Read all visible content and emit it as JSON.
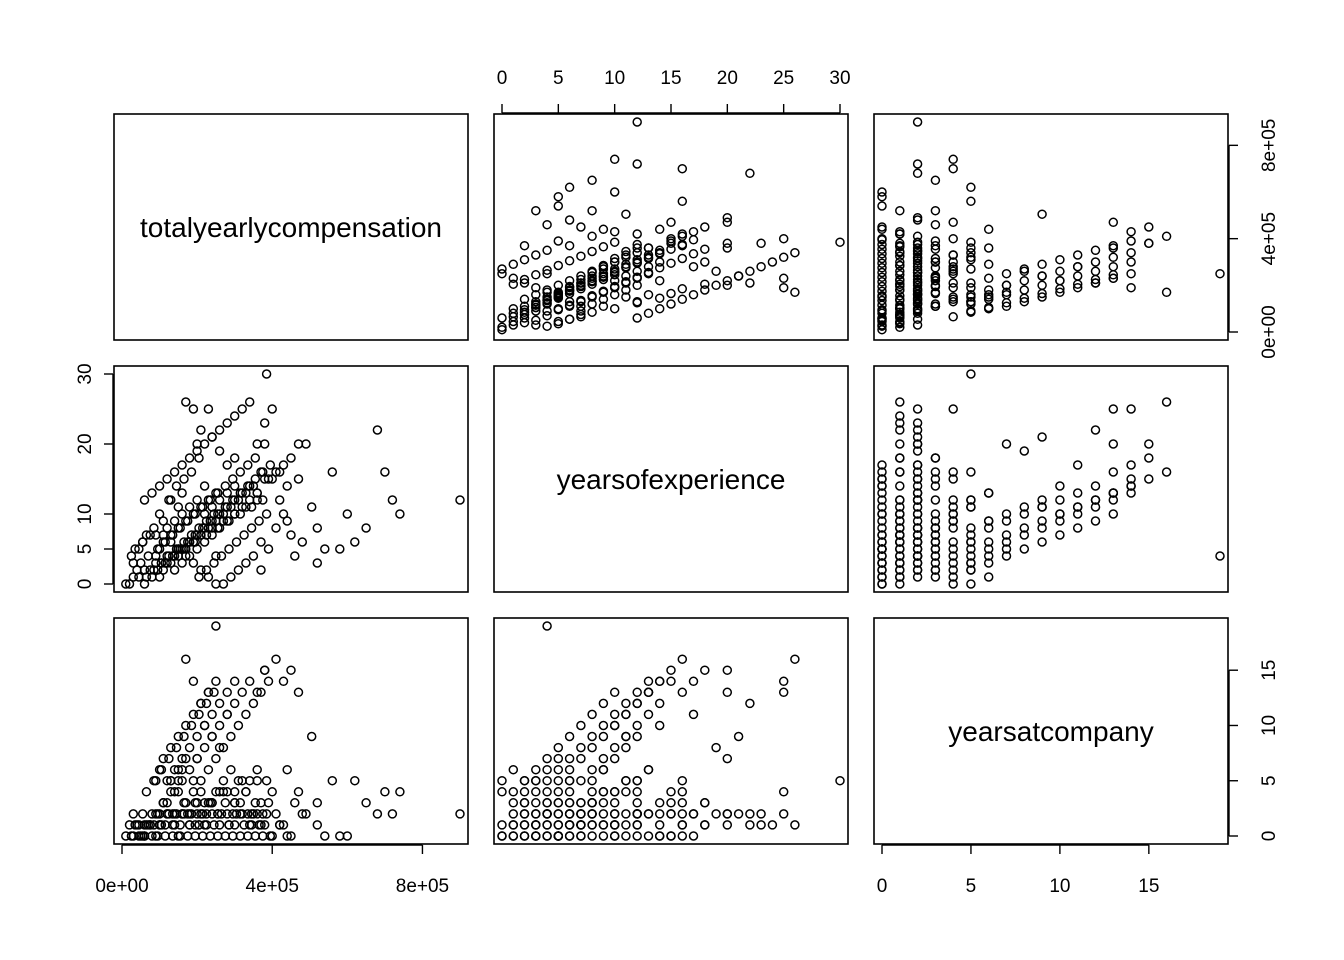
{
  "chart_data": {
    "type": "scatter",
    "subtype": "pairs-matrix",
    "variables": [
      "totalyearlycompensation",
      "yearsofexperience",
      "yearsatcompany"
    ],
    "ranges": {
      "totalyearlycompensation": [
        0,
        900000
      ],
      "yearsofexperience": [
        0,
        30
      ],
      "yearsatcompany": [
        0,
        19
      ]
    },
    "axes": {
      "bottom": [
        {
          "column": 0,
          "variable": "totalyearlycompensation",
          "ticks": [
            0,
            400000,
            800000
          ],
          "labels": [
            "0e+00",
            "4e+05",
            "8e+05"
          ]
        },
        {
          "column": 2,
          "variable": "yearsatcompany",
          "ticks": [
            0,
            5,
            10,
            15
          ],
          "labels": [
            "0",
            "5",
            "10",
            "15"
          ]
        }
      ],
      "top": [
        {
          "column": 1,
          "variable": "yearsofexperience",
          "ticks": [
            0,
            5,
            10,
            15,
            20,
            25,
            30
          ],
          "labels": [
            "0",
            "5",
            "10",
            "15",
            "20",
            "25",
            "30"
          ]
        }
      ],
      "left": [
        {
          "row": 1,
          "variable": "yearsofexperience",
          "ticks": [
            0,
            5,
            10,
            20,
            30
          ],
          "labels": [
            "0",
            "5",
            "10",
            "20",
            "30"
          ]
        }
      ],
      "right": [
        {
          "row": 0,
          "variable": "totalyearlycompensation",
          "ticks": [
            0,
            400000,
            800000
          ],
          "labels": [
            "0e+00",
            "4e+05",
            "8e+05"
          ]
        },
        {
          "row": 2,
          "variable": "yearsatcompany",
          "ticks": [
            0,
            5,
            10,
            15
          ],
          "labels": [
            "0",
            "5",
            "10",
            "15"
          ]
        }
      ]
    },
    "observations": {
      "fields": [
        "totalyearlycompensation",
        "yearsofexperience",
        "yearsatcompany"
      ],
      "rows": [
        [
          10000,
          0,
          0
        ],
        [
          20000,
          0,
          1
        ],
        [
          30000,
          1,
          0
        ],
        [
          45000,
          1,
          1
        ],
        [
          60000,
          2,
          0
        ],
        [
          75000,
          2,
          1
        ],
        [
          90000,
          3,
          0
        ],
        [
          105000,
          3,
          1
        ],
        [
          120000,
          4,
          2
        ],
        [
          135000,
          4,
          1
        ],
        [
          150000,
          5,
          0
        ],
        [
          165000,
          5,
          2
        ],
        [
          180000,
          6,
          1
        ],
        [
          195000,
          6,
          3
        ],
        [
          210000,
          7,
          2
        ],
        [
          225000,
          7,
          1
        ],
        [
          240000,
          8,
          3
        ],
        [
          255000,
          8,
          2
        ],
        [
          270000,
          9,
          4
        ],
        [
          285000,
          9,
          1
        ],
        [
          300000,
          10,
          3
        ],
        [
          315000,
          10,
          2
        ],
        [
          330000,
          11,
          4
        ],
        [
          345000,
          11,
          1
        ],
        [
          360000,
          12,
          5
        ],
        [
          375000,
          12,
          2
        ],
        [
          120000,
          3,
          3
        ],
        [
          140000,
          4,
          4
        ],
        [
          160000,
          5,
          5
        ],
        [
          180000,
          6,
          6
        ],
        [
          200000,
          7,
          7
        ],
        [
          220000,
          8,
          8
        ],
        [
          240000,
          9,
          9
        ],
        [
          260000,
          10,
          10
        ],
        [
          280000,
          11,
          11
        ],
        [
          300000,
          12,
          12
        ],
        [
          320000,
          13,
          13
        ],
        [
          340000,
          14,
          14
        ],
        [
          360000,
          13,
          13
        ],
        [
          380000,
          15,
          15
        ],
        [
          100000,
          1,
          2
        ],
        [
          110000,
          2,
          3
        ],
        [
          130000,
          3,
          5
        ],
        [
          150000,
          4,
          6
        ],
        [
          170000,
          5,
          7
        ],
        [
          190000,
          6,
          4
        ],
        [
          210000,
          7,
          5
        ],
        [
          230000,
          8,
          6
        ],
        [
          250000,
          9,
          7
        ],
        [
          270000,
          10,
          8
        ],
        [
          290000,
          11,
          9
        ],
        [
          310000,
          12,
          10
        ],
        [
          330000,
          13,
          11
        ],
        [
          350000,
          14,
          12
        ],
        [
          370000,
          16,
          13
        ],
        [
          390000,
          15,
          14
        ],
        [
          410000,
          16,
          16
        ],
        [
          430000,
          17,
          14
        ],
        [
          450000,
          18,
          15
        ],
        [
          470000,
          20,
          13
        ],
        [
          60000,
          0,
          0
        ],
        [
          80000,
          1,
          0
        ],
        [
          95000,
          2,
          0
        ],
        [
          115000,
          3,
          0
        ],
        [
          135000,
          4,
          0
        ],
        [
          155000,
          5,
          0
        ],
        [
          175000,
          6,
          0
        ],
        [
          195000,
          7,
          0
        ],
        [
          215000,
          8,
          0
        ],
        [
          235000,
          9,
          0
        ],
        [
          255000,
          10,
          0
        ],
        [
          275000,
          11,
          0
        ],
        [
          295000,
          12,
          0
        ],
        [
          315000,
          13,
          0
        ],
        [
          335000,
          14,
          0
        ],
        [
          355000,
          15,
          0
        ],
        [
          375000,
          16,
          0
        ],
        [
          395000,
          17,
          0
        ],
        [
          140000,
          2,
          2
        ],
        [
          160000,
          3,
          2
        ],
        [
          180000,
          4,
          2
        ],
        [
          200000,
          5,
          3
        ],
        [
          220000,
          6,
          3
        ],
        [
          240000,
          7,
          3
        ],
        [
          260000,
          8,
          4
        ],
        [
          280000,
          9,
          4
        ],
        [
          300000,
          10,
          4
        ],
        [
          320000,
          11,
          5
        ],
        [
          340000,
          12,
          5
        ],
        [
          360000,
          13,
          6
        ],
        [
          45000,
          5,
          0
        ],
        [
          55000,
          6,
          0
        ],
        [
          65000,
          7,
          1
        ],
        [
          85000,
          8,
          1
        ],
        [
          100000,
          10,
          1
        ],
        [
          125000,
          12,
          2
        ],
        [
          145000,
          14,
          2
        ],
        [
          165000,
          15,
          3
        ],
        [
          185000,
          16,
          2
        ],
        [
          205000,
          18,
          1
        ],
        [
          900000,
          12,
          2
        ],
        [
          740000,
          10,
          4
        ],
        [
          720000,
          12,
          2
        ],
        [
          700000,
          16,
          4
        ],
        [
          680000,
          22,
          2
        ],
        [
          650000,
          8,
          3
        ],
        [
          620000,
          6,
          5
        ],
        [
          600000,
          10,
          0
        ],
        [
          580000,
          5,
          0
        ],
        [
          560000,
          16,
          5
        ],
        [
          540000,
          5,
          0
        ],
        [
          520000,
          8,
          3
        ],
        [
          505000,
          11,
          9
        ],
        [
          490000,
          20,
          2
        ],
        [
          470000,
          15,
          4
        ],
        [
          460000,
          4,
          3
        ],
        [
          440000,
          9,
          6
        ],
        [
          420000,
          12,
          1
        ],
        [
          400000,
          25,
          4
        ],
        [
          385000,
          30,
          5
        ],
        [
          380000,
          20,
          15
        ],
        [
          370000,
          2,
          3
        ],
        [
          250000,
          4,
          19
        ],
        [
          300000,
          18,
          3
        ],
        [
          170000,
          26,
          16
        ],
        [
          190000,
          25,
          14
        ],
        [
          230000,
          25,
          13
        ],
        [
          210000,
          22,
          12
        ],
        [
          280000,
          17,
          11
        ],
        [
          220000,
          14,
          10
        ],
        [
          240000,
          21,
          9
        ],
        [
          260000,
          19,
          8
        ],
        [
          200000,
          20,
          7
        ],
        [
          160000,
          13,
          6
        ],
        [
          150000,
          11,
          5
        ],
        [
          130000,
          12,
          4
        ],
        [
          110000,
          9,
          3
        ],
        [
          90000,
          7,
          2
        ],
        [
          70000,
          4,
          1
        ],
        [
          50000,
          3,
          0
        ],
        [
          40000,
          2,
          1
        ],
        [
          30000,
          3,
          2
        ],
        [
          25000,
          4,
          0
        ],
        [
          35000,
          5,
          1
        ],
        [
          55000,
          6,
          2
        ],
        [
          75000,
          7,
          1
        ],
        [
          95000,
          5,
          2
        ],
        [
          115000,
          6,
          1
        ],
        [
          135000,
          7,
          2
        ],
        [
          155000,
          8,
          1
        ],
        [
          175000,
          9,
          2
        ],
        [
          195000,
          10,
          1
        ],
        [
          215000,
          11,
          2
        ],
        [
          235000,
          12,
          3
        ],
        [
          255000,
          13,
          2
        ],
        [
          275000,
          14,
          3
        ],
        [
          295000,
          15,
          2
        ],
        [
          315000,
          16,
          3
        ],
        [
          335000,
          17,
          2
        ],
        [
          355000,
          18,
          3
        ],
        [
          205000,
          1,
          1
        ],
        [
          225000,
          2,
          2
        ],
        [
          245000,
          3,
          1
        ],
        [
          265000,
          4,
          2
        ],
        [
          285000,
          5,
          1
        ],
        [
          305000,
          6,
          2
        ],
        [
          325000,
          7,
          1
        ],
        [
          345000,
          8,
          2
        ],
        [
          365000,
          9,
          1
        ],
        [
          385000,
          10,
          2
        ],
        [
          120000,
          8,
          5
        ],
        [
          140000,
          9,
          6
        ],
        [
          160000,
          10,
          7
        ],
        [
          180000,
          11,
          8
        ],
        [
          200000,
          12,
          9
        ],
        [
          220000,
          10,
          10
        ],
        [
          240000,
          11,
          11
        ],
        [
          260000,
          12,
          12
        ],
        [
          280000,
          13,
          13
        ],
        [
          300000,
          14,
          14
        ],
        [
          90000,
          4,
          5
        ],
        [
          100000,
          5,
          6
        ],
        [
          110000,
          6,
          7
        ],
        [
          130000,
          7,
          8
        ],
        [
          150000,
          8,
          9
        ],
        [
          170000,
          9,
          10
        ],
        [
          190000,
          10,
          11
        ],
        [
          210000,
          11,
          12
        ],
        [
          230000,
          12,
          13
        ],
        [
          250000,
          13,
          14
        ],
        [
          65000,
          1,
          4
        ],
        [
          85000,
          2,
          5
        ],
        [
          105000,
          3,
          6
        ],
        [
          125000,
          4,
          7
        ],
        [
          145000,
          5,
          8
        ],
        [
          165000,
          6,
          9
        ],
        [
          185000,
          7,
          10
        ],
        [
          205000,
          8,
          11
        ],
        [
          225000,
          9,
          12
        ],
        [
          245000,
          10,
          13
        ],
        [
          520000,
          3,
          1
        ],
        [
          480000,
          6,
          2
        ],
        [
          450000,
          7,
          0
        ],
        [
          430000,
          10,
          1
        ],
        [
          410000,
          8,
          2
        ],
        [
          390000,
          5,
          3
        ],
        [
          370000,
          6,
          1
        ],
        [
          350000,
          4,
          2
        ],
        [
          330000,
          3,
          4
        ],
        [
          310000,
          2,
          5
        ],
        [
          290000,
          1,
          6
        ],
        [
          270000,
          0,
          5
        ],
        [
          250000,
          0,
          4
        ],
        [
          230000,
          1,
          3
        ],
        [
          210000,
          2,
          4
        ],
        [
          190000,
          3,
          5
        ],
        [
          170000,
          4,
          3
        ],
        [
          150000,
          5,
          4
        ],
        [
          130000,
          6,
          5
        ],
        [
          110000,
          7,
          3
        ],
        [
          60000,
          12,
          1
        ],
        [
          80000,
          13,
          2
        ],
        [
          100000,
          14,
          1
        ],
        [
          120000,
          15,
          2
        ],
        [
          140000,
          16,
          1
        ],
        [
          160000,
          17,
          2
        ],
        [
          180000,
          18,
          1
        ],
        [
          200000,
          19,
          2
        ],
        [
          220000,
          20,
          1
        ],
        [
          240000,
          21,
          2
        ],
        [
          260000,
          22,
          1
        ],
        [
          280000,
          23,
          2
        ],
        [
          300000,
          24,
          1
        ],
        [
          320000,
          25,
          2
        ],
        [
          340000,
          26,
          1
        ],
        [
          360000,
          20,
          2
        ],
        [
          380000,
          23,
          1
        ],
        [
          400000,
          15,
          0
        ],
        [
          420000,
          16,
          1
        ],
        [
          440000,
          14,
          0
        ]
      ]
    }
  }
}
